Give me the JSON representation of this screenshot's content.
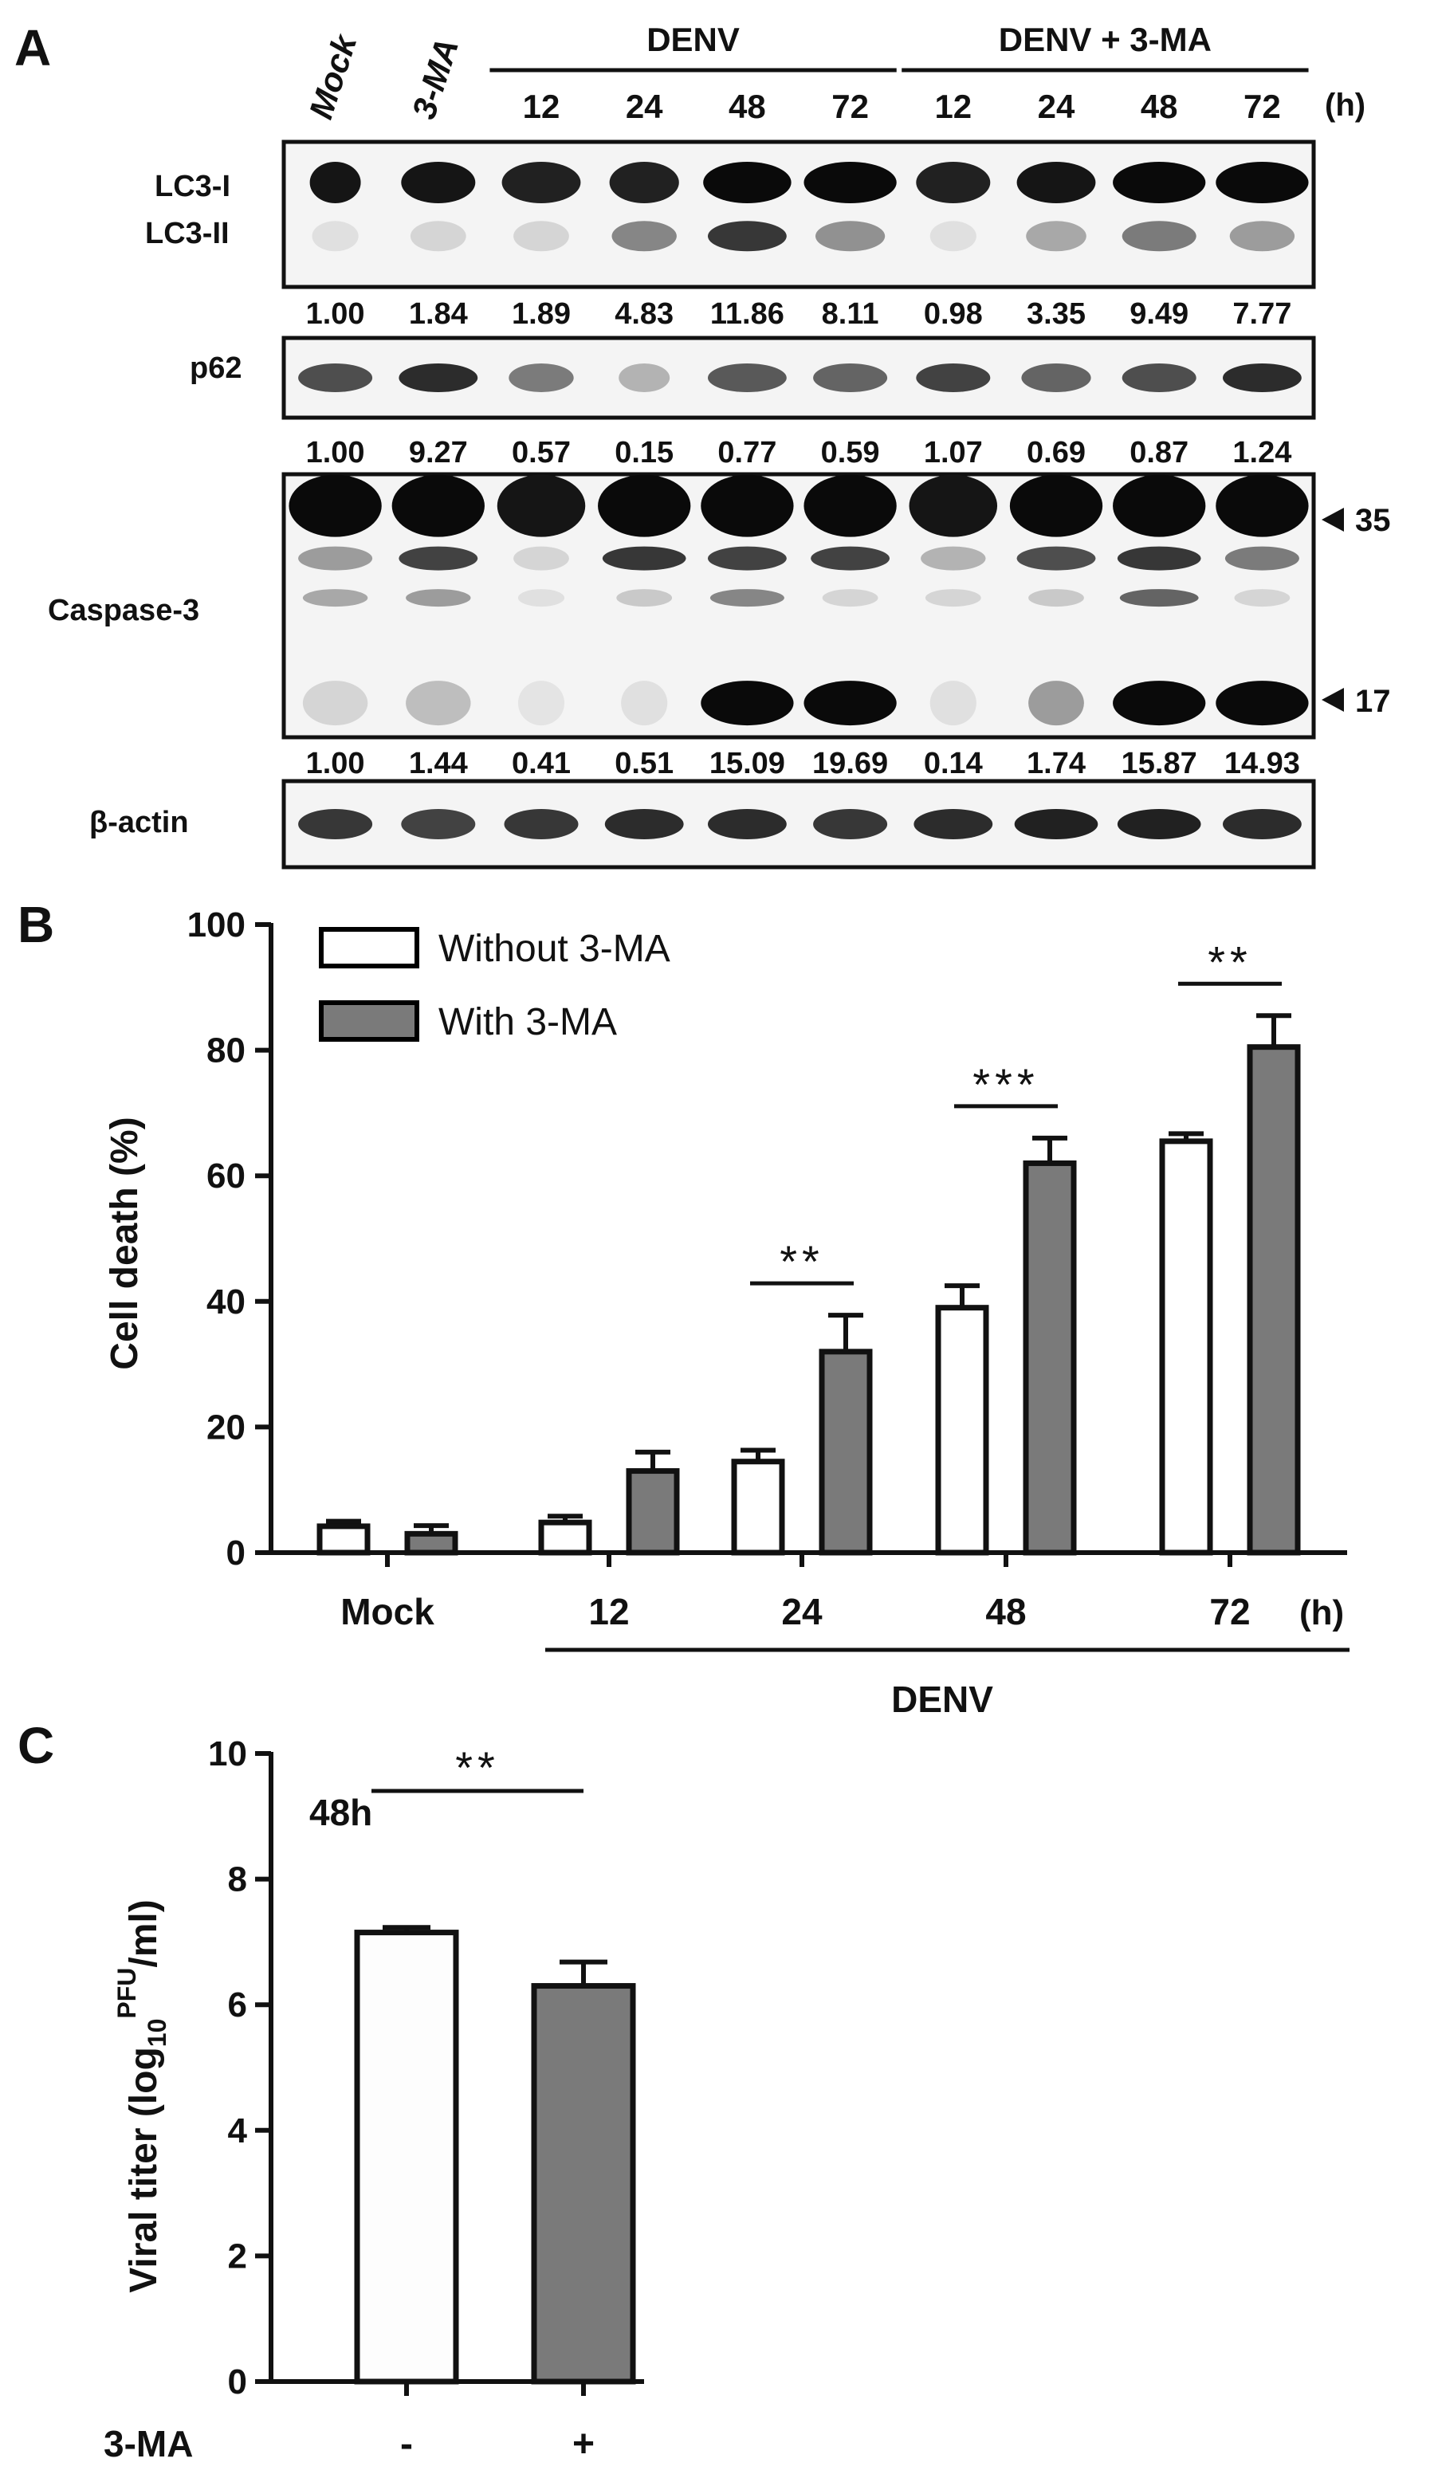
{
  "panel_a": {
    "letter": "A",
    "lanes": [
      "Mock",
      "3-MA",
      "12",
      "24",
      "48",
      "72",
      "12",
      "24",
      "48",
      "72"
    ],
    "hours_unit": "(h)",
    "groups": [
      {
        "label": "DENV",
        "from_lane": 2,
        "to_lane": 5
      },
      {
        "label": "DENV + 3-MA",
        "from_lane": 6,
        "to_lane": 9
      }
    ],
    "blots": [
      {
        "labels": [
          "LC3-I",
          "LC3-II"
        ],
        "band_rows": [
          {
            "label": "LC3-I",
            "intensity": [
              0.95,
              0.95,
              0.9,
              0.9,
              1.0,
              1.0,
              0.9,
              0.95,
              1.0,
              1.0
            ],
            "width": [
              0.55,
              0.8,
              0.85,
              0.75,
              0.95,
              1.0,
              0.8,
              0.85,
              1.0,
              1.0
            ]
          },
          {
            "label": "LC3-II",
            "intensity": [
              0.05,
              0.1,
              0.1,
              0.45,
              0.8,
              0.4,
              0.05,
              0.3,
              0.5,
              0.35
            ],
            "width": [
              0.5,
              0.6,
              0.6,
              0.7,
              0.85,
              0.75,
              0.5,
              0.65,
              0.8,
              0.7
            ]
          }
        ],
        "quant": [
          "1.00",
          "1.84",
          "1.89",
          "4.83",
          "11.86",
          "8.11",
          "0.98",
          "3.35",
          "9.49",
          "7.77"
        ]
      },
      {
        "labels": [
          "p62"
        ],
        "band_rows": [
          {
            "label": "p62",
            "intensity": [
              0.7,
              0.85,
              0.5,
              0.25,
              0.65,
              0.6,
              0.75,
              0.6,
              0.7,
              0.85
            ],
            "width": [
              0.8,
              0.85,
              0.7,
              0.55,
              0.85,
              0.8,
              0.8,
              0.75,
              0.8,
              0.85
            ]
          }
        ],
        "quant": [
          "1.00",
          "9.27",
          "0.57",
          "0.15",
          "0.77",
          "0.59",
          "1.07",
          "0.69",
          "0.87",
          "1.24"
        ]
      },
      {
        "labels": [
          "Caspase-3"
        ],
        "markers": [
          "35",
          "17"
        ],
        "band_rows": [
          {
            "label": "35",
            "intensity": [
              1.0,
              1.0,
              0.95,
              1.0,
              1.0,
              1.0,
              0.95,
              1.0,
              1.0,
              1.0
            ],
            "width": [
              1.0,
              1.0,
              0.95,
              1.0,
              1.0,
              1.0,
              0.95,
              1.0,
              1.0,
              1.0
            ]
          },
          {
            "label": "upper",
            "intensity": [
              0.35,
              0.75,
              0.1,
              0.8,
              0.75,
              0.75,
              0.25,
              0.7,
              0.8,
              0.5
            ],
            "width": [
              0.8,
              0.85,
              0.6,
              0.9,
              0.85,
              0.85,
              0.7,
              0.85,
              0.9,
              0.8
            ]
          },
          {
            "label": "mid",
            "intensity": [
              0.3,
              0.35,
              0.05,
              0.15,
              0.45,
              0.1,
              0.1,
              0.15,
              0.6,
              0.1
            ],
            "width": [
              0.7,
              0.7,
              0.5,
              0.6,
              0.8,
              0.6,
              0.6,
              0.6,
              0.85,
              0.6
            ]
          },
          {
            "label": "17",
            "intensity": [
              0.1,
              0.2,
              0.03,
              0.05,
              1.0,
              1.0,
              0.05,
              0.35,
              1.0,
              1.0
            ],
            "width": [
              0.7,
              0.7,
              0.5,
              0.5,
              1.0,
              1.0,
              0.5,
              0.6,
              1.0,
              1.0
            ]
          }
        ],
        "quant": [
          "1.00",
          "1.44",
          "0.41",
          "0.51",
          "15.09",
          "19.69",
          "0.14",
          "1.74",
          "15.87",
          "14.93"
        ]
      },
      {
        "labels": [
          "β-actin"
        ],
        "band_rows": [
          {
            "label": "β-actin",
            "intensity": [
              0.8,
              0.75,
              0.8,
              0.85,
              0.85,
              0.8,
              0.85,
              0.9,
              0.9,
              0.85
            ],
            "width": [
              0.8,
              0.8,
              0.8,
              0.85,
              0.85,
              0.8,
              0.85,
              0.9,
              0.9,
              0.85
            ]
          }
        ]
      }
    ]
  },
  "chart_data": [
    {
      "type": "bar",
      "panel": "B",
      "ylabel": "Cell death (%)",
      "ylim": [
        0,
        100
      ],
      "yticks": [
        0,
        20,
        40,
        60,
        80,
        100
      ],
      "categories": [
        "Mock",
        "12",
        "24",
        "48",
        "72"
      ],
      "x_unit": "(h)",
      "group_label": "DENV",
      "group_categories": [
        "12",
        "24",
        "48",
        "72"
      ],
      "legend_position": "top-left",
      "series": [
        {
          "name": "Without 3-MA",
          "color": "#ffffff",
          "values": [
            4.2,
            4.8,
            14.5,
            39,
            65.5
          ],
          "errors": [
            0.8,
            1.0,
            1.8,
            3.5,
            1.2
          ]
        },
        {
          "name": "With 3-MA",
          "color": "#7a7a7a",
          "values": [
            3.0,
            13,
            32,
            62,
            80.5
          ],
          "errors": [
            1.3,
            3.0,
            5.8,
            4.0,
            5.0
          ]
        }
      ],
      "significance": [
        {
          "category": "24",
          "label": "**"
        },
        {
          "category": "48",
          "label": "***"
        },
        {
          "category": "72",
          "label": "**"
        }
      ]
    },
    {
      "type": "bar",
      "panel": "C",
      "annotation": "48h",
      "ylabel": "Viral titer (log10 PFU/ml)",
      "ylim": [
        0,
        10
      ],
      "yticks": [
        0,
        2,
        4,
        6,
        8,
        10
      ],
      "xlabel": "3-MA",
      "categories": [
        "-",
        "+"
      ],
      "values": [
        7.15,
        6.3
      ],
      "errors": [
        0.08,
        0.38
      ],
      "colors": [
        "#fdfdfd",
        "#7a7a7a"
      ],
      "significance": [
        {
          "categories": [
            "-",
            "+"
          ],
          "label": "**"
        }
      ]
    }
  ],
  "texts": {
    "letter_b": "B",
    "letter_c": "C",
    "c_ylabel_main": "Viral titer (log",
    "c_ylabel_sub": "10",
    "c_ylabel_sup": "PFU",
    "c_ylabel_end": "/ml)"
  }
}
